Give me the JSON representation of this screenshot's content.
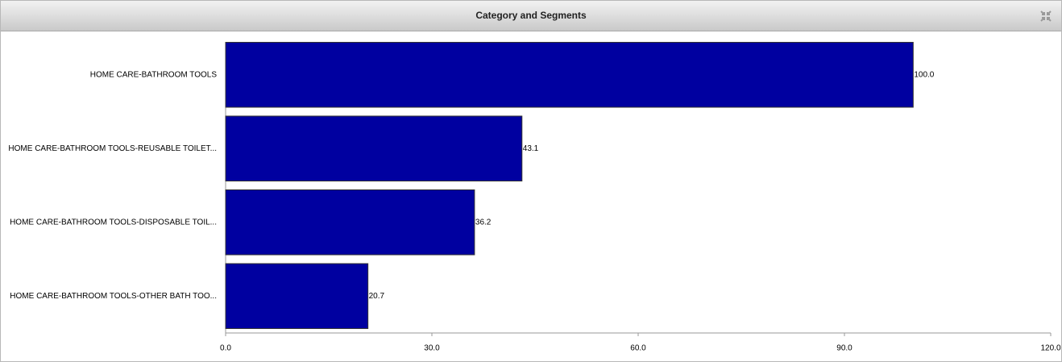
{
  "chart_data": {
    "type": "bar",
    "orientation": "horizontal",
    "title": "Category and Segments",
    "categories": [
      "HOME CARE-BATHROOM TOOLS",
      "HOME CARE-BATHROOM TOOLS-REUSABLE TOILET...",
      "HOME CARE-BATHROOM TOOLS-DISPOSABLE TOIL...",
      "HOME CARE-BATHROOM TOOLS-OTHER BATH TOO..."
    ],
    "values": [
      100.0,
      43.1,
      36.2,
      20.7
    ],
    "value_labels": [
      "100.0",
      "43.1",
      "36.2",
      "20.7"
    ],
    "color": "#0000a0",
    "xlim": [
      0,
      120
    ],
    "xticks": [
      {
        "value": 0,
        "label": "0.0"
      },
      {
        "value": 30,
        "label": "30.0"
      },
      {
        "value": 60,
        "label": "60.0"
      },
      {
        "value": 90,
        "label": "90.0"
      },
      {
        "value": 120,
        "label": "120.0"
      }
    ],
    "grid": false
  }
}
